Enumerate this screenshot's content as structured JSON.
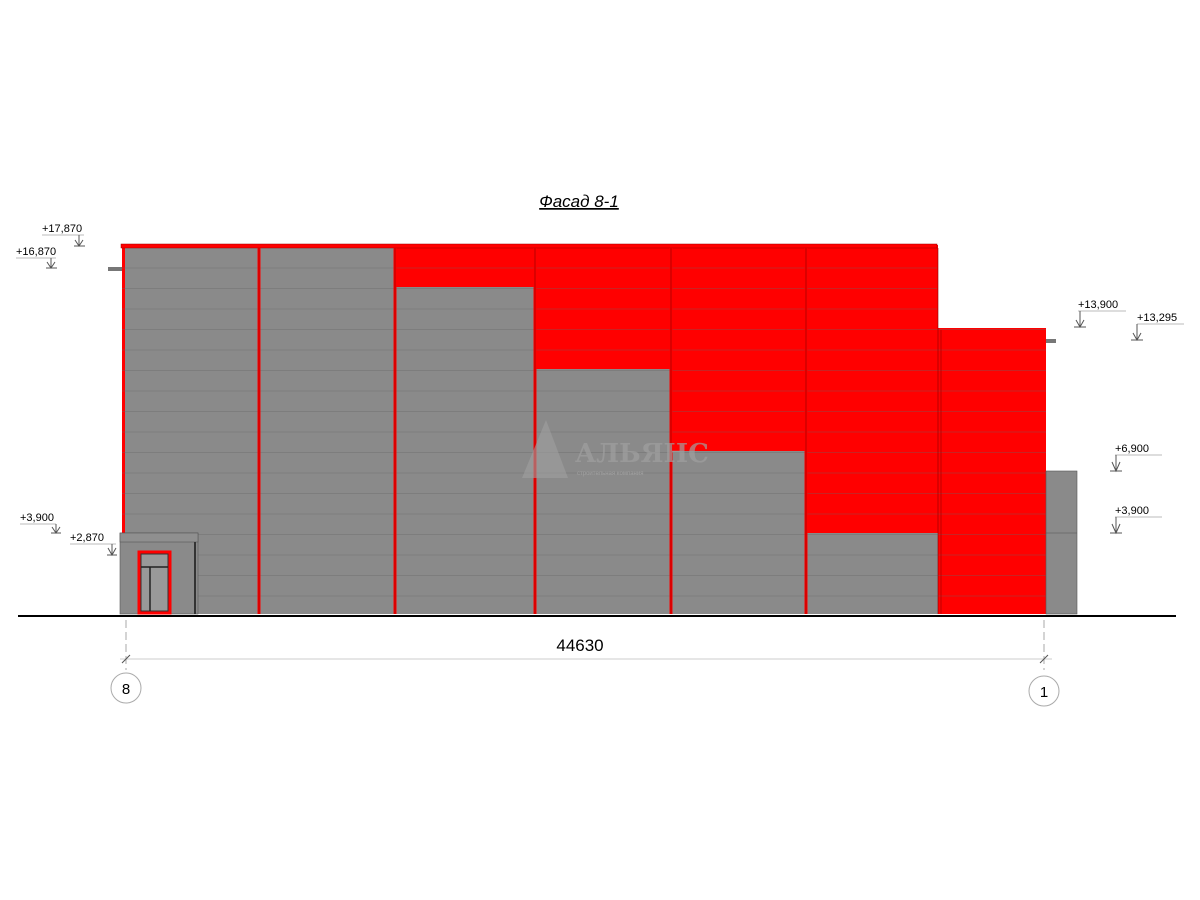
{
  "title": "Фасад 8-1",
  "levels_left": [
    "+17,870",
    "+16,870",
    "+3,900",
    "+2,870"
  ],
  "levels_right": [
    "+13,900",
    "+13,295",
    "+6,900",
    "+3,900"
  ],
  "dimension": "44630",
  "axes": {
    "left": "8",
    "right": "1"
  },
  "watermark": {
    "name": "АЛЬЯНС",
    "subtitle": "строительная компания"
  },
  "colors": {
    "cladding_red": "#ff0000",
    "cladding_gray": "#8a8a8a",
    "line": "#000000"
  }
}
